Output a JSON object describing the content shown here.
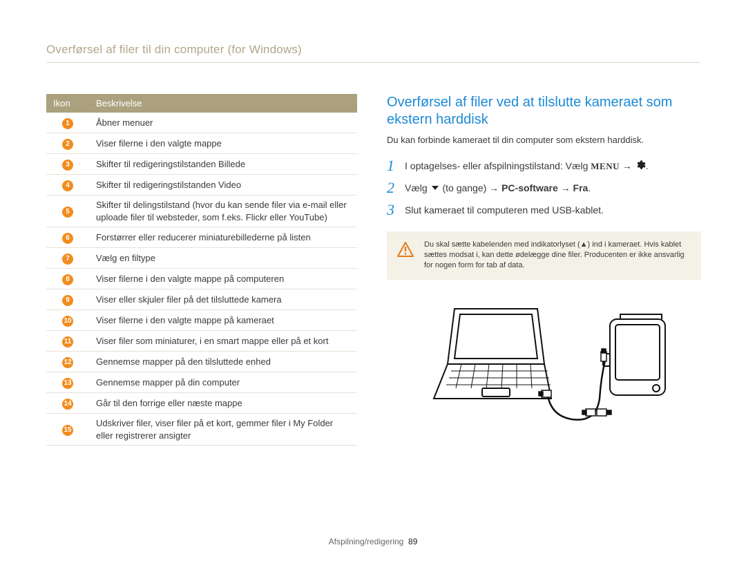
{
  "header": {
    "title": "Overførsel af filer til din computer (for Windows)"
  },
  "table": {
    "col_icon": "Ikon",
    "col_desc": "Beskrivelse",
    "num_bg": "#f28c1e",
    "rows": [
      {
        "n": "1",
        "d": "Åbner menuer"
      },
      {
        "n": "2",
        "d": "Viser filerne i den valgte mappe"
      },
      {
        "n": "3",
        "d": "Skifter til redigeringstilstanden Billede"
      },
      {
        "n": "4",
        "d": "Skifter til redigeringstilstanden Video"
      },
      {
        "n": "5",
        "d": "Skifter til delingstilstand (hvor du kan sende filer via e-mail eller uploade filer til websteder, som f.eks. Flickr eller YouTube)"
      },
      {
        "n": "6",
        "d": "Forstørrer eller reducerer miniaturebillederne på listen"
      },
      {
        "n": "7",
        "d": "Vælg en filtype"
      },
      {
        "n": "8",
        "d": "Viser filerne i den valgte mappe på computeren"
      },
      {
        "n": "9",
        "d": "Viser eller skjuler filer på det tilsluttede kamera"
      },
      {
        "n": "10",
        "d": "Viser filerne i den valgte mappe på kameraet"
      },
      {
        "n": "11",
        "d": "Viser filer som miniaturer, i en smart mappe eller på et kort"
      },
      {
        "n": "12",
        "d": "Gennemse mapper på den tilsluttede enhed"
      },
      {
        "n": "13",
        "d": "Gennemse mapper på din computer"
      },
      {
        "n": "14",
        "d": "Går til den forrige eller næste mappe"
      },
      {
        "n": "15",
        "d": "Udskriver filer, viser filer på et kort, gemmer filer i My Folder eller registrerer ansigter"
      }
    ]
  },
  "right": {
    "title": "Overførsel af filer ved at tilslutte kameraet som ekstern harddisk",
    "intro": "Du kan forbinde kameraet til din computer som ekstern harddisk.",
    "steps": {
      "s1": {
        "n": "1",
        "pre": "I optagelses- eller afspilningstilstand: Vælg ",
        "menu": "MENU",
        "arrow": " → ",
        "post": "."
      },
      "s2": {
        "n": "2",
        "pre": "Vælg ",
        "mid": " (to gange) → ",
        "bold1": "PC-software",
        "arrow": " → ",
        "bold2": "Fra",
        "post": "."
      },
      "s3": {
        "n": "3",
        "text": "Slut kameraet til computeren med USB-kablet."
      }
    },
    "warning": "Du skal sætte kabelenden med indikatorlyset (▲) ind i kameraet. Hvis kablet sættes modsat i, kan dette ødelægge dine filer. Producenten er ikke ansvarlig for nogen form for tab af data."
  },
  "footer": {
    "section": "Afspilning/redigering",
    "page": "89"
  },
  "colors": {
    "header_text": "#b2a68b",
    "rule": "#d9d4c4",
    "th_bg": "#aba17e",
    "accent_blue": "#1e8bd6",
    "warn_bg": "#f4f1e7"
  }
}
